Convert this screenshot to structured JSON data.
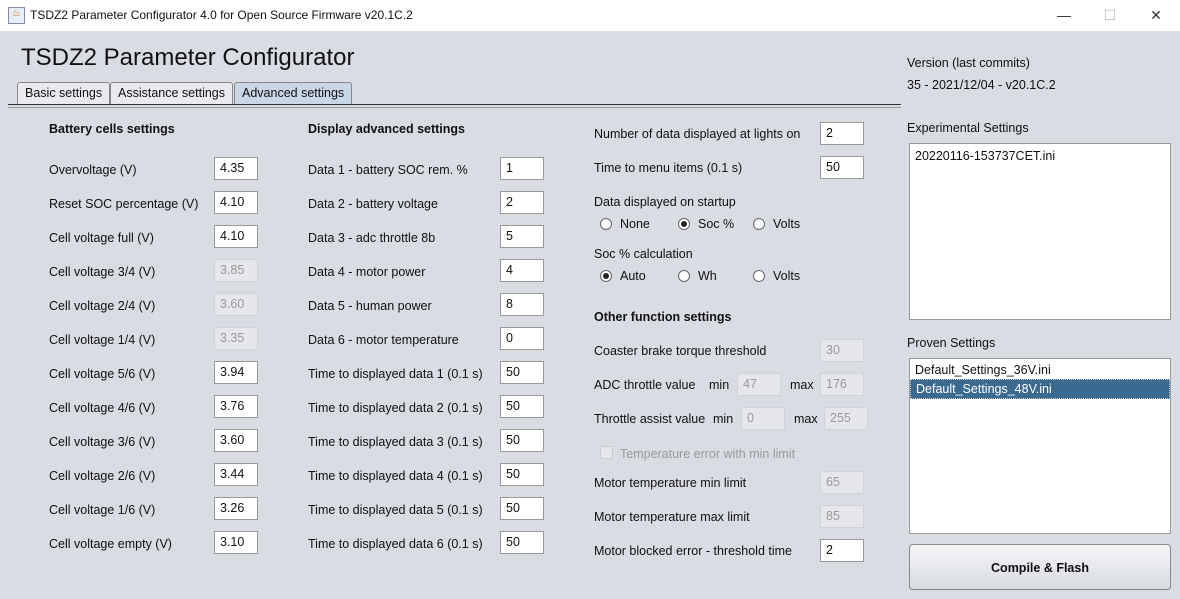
{
  "window": {
    "title": "TSDZ2 Parameter Configurator 4.0 for Open Source Firmware v20.1C.2",
    "minimize": "—",
    "maximize": "☐",
    "close": "✕",
    "icon": "java-icon"
  },
  "app_title": "TSDZ2 Parameter Configurator",
  "tabs": [
    {
      "label": "Basic settings"
    },
    {
      "label": "Assistance settings"
    },
    {
      "label": "Advanced settings",
      "selected": true
    }
  ],
  "battery": {
    "heading": "Battery cells settings",
    "rows": [
      {
        "label": "Overvoltage (V)",
        "value": "4.35",
        "enabled": true
      },
      {
        "label": "Reset SOC percentage (V)",
        "value": "4.10",
        "enabled": true
      },
      {
        "label": "Cell voltage full (V)",
        "value": "4.10",
        "enabled": true
      },
      {
        "label": "Cell voltage 3/4 (V)",
        "value": "3.85",
        "enabled": false
      },
      {
        "label": "Cell voltage 2/4 (V)",
        "value": "3.60",
        "enabled": false
      },
      {
        "label": "Cell voltage 1/4 (V)",
        "value": "3.35",
        "enabled": false
      },
      {
        "label": "Cell voltage 5/6 (V)",
        "value": "3.94",
        "enabled": true
      },
      {
        "label": "Cell voltage 4/6 (V)",
        "value": "3.76",
        "enabled": true
      },
      {
        "label": "Cell voltage 3/6 (V)",
        "value": "3.60",
        "enabled": true
      },
      {
        "label": "Cell voltage 2/6 (V)",
        "value": "3.44",
        "enabled": true
      },
      {
        "label": "Cell voltage 1/6 (V)",
        "value": "3.26",
        "enabled": true
      },
      {
        "label": "Cell voltage empty (V)",
        "value": "3.10",
        "enabled": true
      }
    ]
  },
  "display": {
    "heading": "Display advanced settings",
    "rows": [
      {
        "label": "Data 1 - battery SOC rem. %",
        "value": "1"
      },
      {
        "label": "Data 2 - battery voltage",
        "value": "2"
      },
      {
        "label": "Data 3 - adc throttle 8b",
        "value": "5"
      },
      {
        "label": "Data 4 - motor power",
        "value": "4"
      },
      {
        "label": "Data 5 - human power",
        "value": "8"
      },
      {
        "label": "Data 6 - motor temperature",
        "value": "0"
      },
      {
        "label": "Time to displayed data 1 (0.1 s)",
        "value": "50"
      },
      {
        "label": "Time to displayed data 2 (0.1 s)",
        "value": "50"
      },
      {
        "label": "Time to displayed data 3 (0.1 s)",
        "value": "50"
      },
      {
        "label": "Time to displayed data 4 (0.1 s)",
        "value": "50"
      },
      {
        "label": "Time to displayed data 5 (0.1 s)",
        "value": "50"
      },
      {
        "label": "Time to displayed data 6 (0.1 s)",
        "value": "50"
      }
    ]
  },
  "right": {
    "lights_label": "Number of data displayed at lights on",
    "lights_value": "2",
    "menu_label": "Time to menu items (0.1 s)",
    "menu_value": "50",
    "startup_label": "Data displayed on startup",
    "startup_options": [
      "None",
      "Soc %",
      "Volts"
    ],
    "startup_selected": "Soc %",
    "soc_label": "Soc % calculation",
    "soc_options": [
      "Auto",
      "Wh",
      "Volts"
    ],
    "soc_selected": "Auto",
    "other_heading": "Other function settings",
    "coaster_label": "Coaster brake torque threshold",
    "coaster_value": "30",
    "adc_label": "ADC throttle value",
    "adc_min_label": "min",
    "adc_min": "47",
    "adc_max_label": "max",
    "adc_max": "176",
    "assist_label": "Throttle assist value",
    "assist_min_label": "min",
    "assist_min": "0",
    "assist_max_label": "max",
    "assist_max": "255",
    "temp_error_label": "Temperature error with min limit",
    "temp_error_checked": false,
    "tmin_label": "Motor temperature min limit",
    "tmin_value": "65",
    "tmax_label": "Motor temperature max limit",
    "tmax_value": "85",
    "blocked_label": "Motor blocked error - threshold time",
    "blocked_value": "2"
  },
  "sidebar": {
    "version_label": "Version (last commits)",
    "version": "35 - 2021/12/04 - v20.1C.2",
    "experimental_label": "Experimental Settings",
    "experimental": [
      "20220116-153737CET.ini"
    ],
    "proven_label": "Proven Settings",
    "proven": [
      "Default_Settings_36V.ini",
      "Default_Settings_48V.ini"
    ],
    "proven_selected": 1,
    "compile_button": "Compile & Flash"
  }
}
